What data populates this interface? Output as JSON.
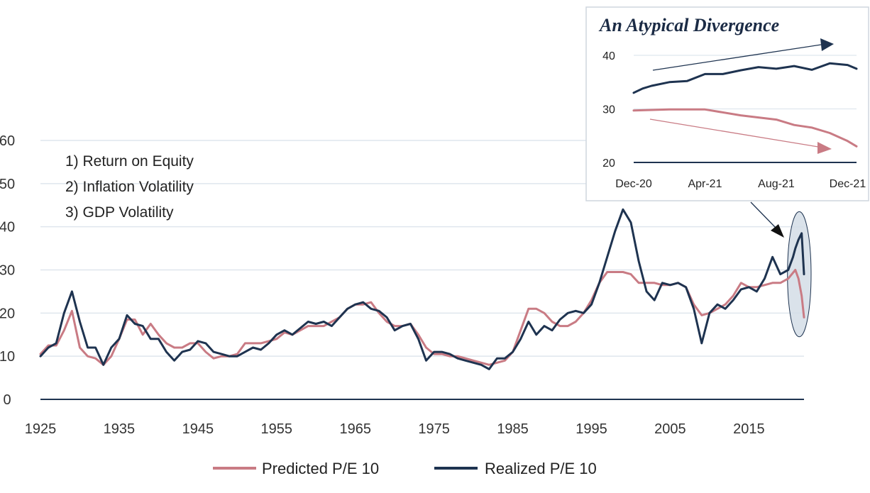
{
  "colors": {
    "predicted": "#c97b84",
    "realized": "#1e3350",
    "grid": "#dfe6ed",
    "axis": "#1e3350",
    "highlight_fill": "#d3dde6"
  },
  "notes": [
    "1) Return on Equity",
    "2) Inflation Volatility",
    "3) GDP Volatility"
  ],
  "legend": {
    "predicted_label": "Predicted P/E 10",
    "realized_label": "Realized P/E 10"
  },
  "chart_data": [
    {
      "type": "line",
      "title": "",
      "xlabel": "",
      "ylabel": "",
      "xlim": [
        1925,
        2022
      ],
      "ylim": [
        0,
        60
      ],
      "x_ticks": [
        "1925",
        "1935",
        "1945",
        "1955",
        "1965",
        "1975",
        "1985",
        "1995",
        "2005",
        "2015"
      ],
      "x_tick_values": [
        1925,
        1935,
        1945,
        1955,
        1965,
        1975,
        1985,
        1995,
        2005,
        2015
      ],
      "y_ticks": [
        "0",
        "10",
        "20",
        "30",
        "40",
        "50",
        "60"
      ],
      "y_tick_values": [
        0,
        10,
        20,
        30,
        40,
        50,
        60
      ],
      "grid": true,
      "legend_position": "bottom",
      "highlight_period": [
        2020.8,
        2022
      ],
      "series": [
        {
          "name": "Predicted P/E 10",
          "points": [
            [
              1925,
              10.5
            ],
            [
              1926,
              12.5
            ],
            [
              1927,
              12.5
            ],
            [
              1928,
              16
            ],
            [
              1929,
              20.5
            ],
            [
              1930,
              12
            ],
            [
              1931,
              10
            ],
            [
              1932,
              9.5
            ],
            [
              1933,
              8
            ],
            [
              1934,
              10
            ],
            [
              1935,
              14
            ],
            [
              1936,
              18.5
            ],
            [
              1937,
              18.5
            ],
            [
              1938,
              15
            ],
            [
              1939,
              17.5
            ],
            [
              1940,
              15
            ],
            [
              1941,
              13
            ],
            [
              1942,
              12
            ],
            [
              1943,
              12
            ],
            [
              1944,
              13
            ],
            [
              1945,
              13
            ],
            [
              1946,
              11
            ],
            [
              1947,
              9.5
            ],
            [
              1948,
              10
            ],
            [
              1949,
              10
            ],
            [
              1950,
              10.5
            ],
            [
              1951,
              13
            ],
            [
              1952,
              13
            ],
            [
              1953,
              13
            ],
            [
              1954,
              13.5
            ],
            [
              1955,
              14
            ],
            [
              1956,
              15.5
            ],
            [
              1957,
              15
            ],
            [
              1958,
              16
            ],
            [
              1959,
              17
            ],
            [
              1960,
              17
            ],
            [
              1961,
              17
            ],
            [
              1962,
              18
            ],
            [
              1963,
              19
            ],
            [
              1964,
              21
            ],
            [
              1965,
              22
            ],
            [
              1966,
              22
            ],
            [
              1967,
              22.5
            ],
            [
              1968,
              20
            ],
            [
              1969,
              18
            ],
            [
              1970,
              17
            ],
            [
              1971,
              17
            ],
            [
              1972,
              17.5
            ],
            [
              1973,
              15
            ],
            [
              1974,
              12
            ],
            [
              1975,
              10.5
            ],
            [
              1976,
              10.5
            ],
            [
              1977,
              10
            ],
            [
              1978,
              10
            ],
            [
              1979,
              9.5
            ],
            [
              1980,
              9
            ],
            [
              1981,
              8.5
            ],
            [
              1982,
              8
            ],
            [
              1983,
              8.5
            ],
            [
              1984,
              9
            ],
            [
              1985,
              11
            ],
            [
              1986,
              16
            ],
            [
              1987,
              21
            ],
            [
              1988,
              21
            ],
            [
              1989,
              20
            ],
            [
              1990,
              18
            ],
            [
              1991,
              17
            ],
            [
              1992,
              17
            ],
            [
              1993,
              18
            ],
            [
              1994,
              20
            ],
            [
              1995,
              23
            ],
            [
              1996,
              27
            ],
            [
              1997,
              29.5
            ],
            [
              1998,
              29.5
            ],
            [
              1999,
              29.5
            ],
            [
              2000,
              29
            ],
            [
              2001,
              27
            ],
            [
              2002,
              27
            ],
            [
              2003,
              27
            ],
            [
              2004,
              26.5
            ],
            [
              2005,
              26.5
            ],
            [
              2006,
              27
            ],
            [
              2007,
              26
            ],
            [
              2008,
              22
            ],
            [
              2009,
              19.5
            ],
            [
              2010,
              20
            ],
            [
              2011,
              21
            ],
            [
              2012,
              22
            ],
            [
              2013,
              24
            ],
            [
              2014,
              27
            ],
            [
              2015,
              26
            ],
            [
              2016,
              26
            ],
            [
              2017,
              26.5
            ],
            [
              2018,
              27
            ],
            [
              2019,
              27
            ],
            [
              2020,
              28
            ],
            [
              2020.9,
              30
            ],
            [
              2021.3,
              28
            ],
            [
              2021.7,
              24
            ],
            [
              2022,
              19
            ]
          ]
        },
        {
          "name": "Realized P/E 10",
          "points": [
            [
              1925,
              10
            ],
            [
              1926,
              12
            ],
            [
              1927,
              13
            ],
            [
              1928,
              20
            ],
            [
              1929,
              25
            ],
            [
              1930,
              18
            ],
            [
              1931,
              12
            ],
            [
              1932,
              12
            ],
            [
              1933,
              8
            ],
            [
              1934,
              12
            ],
            [
              1935,
              14
            ],
            [
              1936,
              19.5
            ],
            [
              1937,
              17.5
            ],
            [
              1938,
              17
            ],
            [
              1939,
              14
            ],
            [
              1940,
              14
            ],
            [
              1941,
              11
            ],
            [
              1942,
              9
            ],
            [
              1943,
              11
            ],
            [
              1944,
              11.5
            ],
            [
              1945,
              13.5
            ],
            [
              1946,
              13
            ],
            [
              1947,
              11
            ],
            [
              1948,
              10.5
            ],
            [
              1949,
              10
            ],
            [
              1950,
              10
            ],
            [
              1951,
              11
            ],
            [
              1952,
              12
            ],
            [
              1953,
              11.5
            ],
            [
              1954,
              13
            ],
            [
              1955,
              15
            ],
            [
              1956,
              16
            ],
            [
              1957,
              15
            ],
            [
              1958,
              16.5
            ],
            [
              1959,
              18
            ],
            [
              1960,
              17.5
            ],
            [
              1961,
              18
            ],
            [
              1962,
              17
            ],
            [
              1963,
              19
            ],
            [
              1964,
              21
            ],
            [
              1965,
              22
            ],
            [
              1966,
              22.5
            ],
            [
              1967,
              21
            ],
            [
              1968,
              20.5
            ],
            [
              1969,
              19
            ],
            [
              1970,
              16
            ],
            [
              1971,
              17
            ],
            [
              1972,
              17.5
            ],
            [
              1973,
              14
            ],
            [
              1974,
              9
            ],
            [
              1975,
              11
            ],
            [
              1976,
              11
            ],
            [
              1977,
              10.5
            ],
            [
              1978,
              9.5
            ],
            [
              1979,
              9
            ],
            [
              1980,
              8.5
            ],
            [
              1981,
              8
            ],
            [
              1982,
              7
            ],
            [
              1983,
              9.5
            ],
            [
              1984,
              9.5
            ],
            [
              1985,
              11
            ],
            [
              1986,
              14
            ],
            [
              1987,
              18
            ],
            [
              1988,
              15
            ],
            [
              1989,
              17
            ],
            [
              1990,
              16
            ],
            [
              1991,
              18.5
            ],
            [
              1992,
              20
            ],
            [
              1993,
              20.5
            ],
            [
              1994,
              20
            ],
            [
              1995,
              22
            ],
            [
              1996,
              27
            ],
            [
              1997,
              33
            ],
            [
              1998,
              39
            ],
            [
              1999,
              44
            ],
            [
              2000,
              41
            ],
            [
              2001,
              32
            ],
            [
              2002,
              25
            ],
            [
              2003,
              23
            ],
            [
              2004,
              27
            ],
            [
              2005,
              26.5
            ],
            [
              2006,
              27
            ],
            [
              2007,
              26
            ],
            [
              2008,
              21
            ],
            [
              2009,
              13
            ],
            [
              2010,
              20
            ],
            [
              2011,
              22
            ],
            [
              2012,
              21
            ],
            [
              2013,
              23
            ],
            [
              2014,
              25.5
            ],
            [
              2015,
              26
            ],
            [
              2016,
              25
            ],
            [
              2017,
              28
            ],
            [
              2018,
              33
            ],
            [
              2019,
              29
            ],
            [
              2020,
              30
            ],
            [
              2020.6,
              33
            ],
            [
              2020.9,
              35
            ],
            [
              2021.3,
              37
            ],
            [
              2021.7,
              38.5
            ],
            [
              2022,
              29
            ]
          ]
        }
      ]
    },
    {
      "type": "line",
      "title": "An Atypical Divergence",
      "xlabel": "",
      "ylabel": "",
      "xlim": [
        0,
        12.5
      ],
      "ylim": [
        20,
        42
      ],
      "x_ticks": [
        "Dec-20",
        "Apr-21",
        "Aug-21",
        "Dec-21"
      ],
      "x_tick_values": [
        0,
        4,
        8,
        12
      ],
      "y_ticks": [
        "20",
        "30",
        "40"
      ],
      "y_tick_values": [
        20,
        30,
        40
      ],
      "grid": true,
      "annotations": [
        "upward trend arrow over Realized P/E 10",
        "downward trend arrow under Predicted P/E 10"
      ],
      "series": [
        {
          "name": "Realized P/E 10",
          "points": [
            [
              0,
              33
            ],
            [
              0.5,
              33.8
            ],
            [
              1,
              34.3
            ],
            [
              2,
              35
            ],
            [
              3,
              35.2
            ],
            [
              4,
              36.5
            ],
            [
              5,
              36.5
            ],
            [
              6,
              37.2
            ],
            [
              7,
              37.8
            ],
            [
              8,
              37.5
            ],
            [
              9,
              38
            ],
            [
              10,
              37.3
            ],
            [
              11,
              38.5
            ],
            [
              12,
              38.2
            ],
            [
              12.5,
              37.5
            ]
          ]
        },
        {
          "name": "Predicted P/E 10",
          "points": [
            [
              0,
              29.7
            ],
            [
              2,
              29.9
            ],
            [
              4,
              29.9
            ],
            [
              6,
              28.8
            ],
            [
              8,
              28
            ],
            [
              9,
              27
            ],
            [
              10,
              26.5
            ],
            [
              11,
              25.5
            ],
            [
              12,
              24
            ],
            [
              12.5,
              23
            ]
          ]
        }
      ]
    }
  ]
}
